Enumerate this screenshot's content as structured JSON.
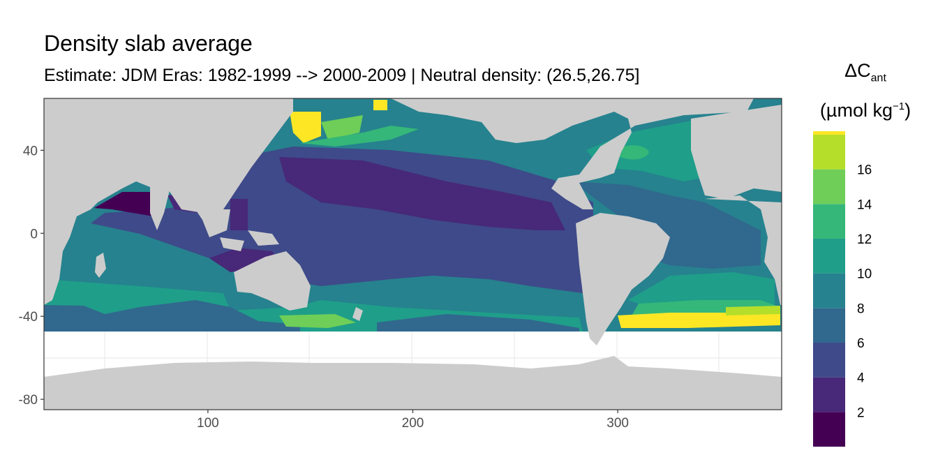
{
  "title": "Density slab average",
  "subtitle": "Estimate: JDM Eras: 1982-1999 --> 2000-2009 | Neutral density: (26.5,26.75]",
  "x_axis": {
    "ticks": [
      100,
      200,
      300
    ],
    "range": [
      20,
      380
    ]
  },
  "y_axis": {
    "ticks": [
      40,
      0,
      -40,
      -80
    ],
    "range": [
      -85,
      65
    ]
  },
  "legend": {
    "title_main": "ΔC",
    "title_sub": "ant",
    "unit_prefix": "(µmol kg",
    "unit_sup": "−1",
    "unit_suffix": ")",
    "breaks": [
      2,
      4,
      6,
      8,
      10,
      12,
      14,
      16
    ],
    "colors": [
      "#440154",
      "#482878",
      "#3e4a89",
      "#31688e",
      "#26828e",
      "#1f9e89",
      "#35b779",
      "#6ece58",
      "#b5de2b",
      "#fde725"
    ]
  },
  "colors": {
    "land": "#cccccc",
    "no_data": "#ffffff",
    "panel_border": "#333333",
    "grid": "#ebebeb"
  }
}
